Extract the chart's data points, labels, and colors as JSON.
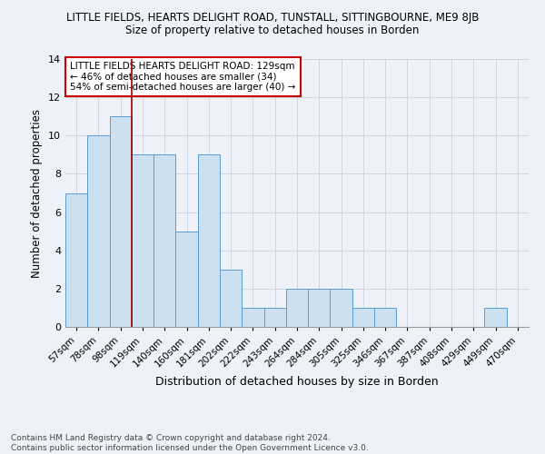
{
  "title": "LITTLE FIELDS, HEARTS DELIGHT ROAD, TUNSTALL, SITTINGBOURNE, ME9 8JB",
  "subtitle": "Size of property relative to detached houses in Borden",
  "xlabel": "Distribution of detached houses by size in Borden",
  "ylabel": "Number of detached properties",
  "footnote": "Contains HM Land Registry data © Crown copyright and database right 2024.\nContains public sector information licensed under the Open Government Licence v3.0.",
  "categories": [
    "57sqm",
    "78sqm",
    "98sqm",
    "119sqm",
    "140sqm",
    "160sqm",
    "181sqm",
    "202sqm",
    "222sqm",
    "243sqm",
    "264sqm",
    "284sqm",
    "305sqm",
    "325sqm",
    "346sqm",
    "367sqm",
    "387sqm",
    "408sqm",
    "429sqm",
    "449sqm",
    "470sqm"
  ],
  "values": [
    7,
    10,
    11,
    9,
    9,
    5,
    9,
    3,
    1,
    1,
    2,
    2,
    2,
    1,
    1,
    0,
    0,
    0,
    0,
    1,
    0
  ],
  "bar_color": "#cce0f0",
  "bar_edge_color": "#5b9bd5",
  "grid_color": "#c8d4e0",
  "bg_color": "#eef2f8",
  "annotation_box_text": "LITTLE FIELDS HEARTS DELIGHT ROAD: 129sqm\n← 46% of detached houses are smaller (34)\n54% of semi-detached houses are larger (40) →",
  "vline_x": 2.5,
  "vline_color": "#990000",
  "ylim": [
    0,
    14
  ],
  "yticks": [
    0,
    2,
    4,
    6,
    8,
    10,
    12,
    14
  ]
}
